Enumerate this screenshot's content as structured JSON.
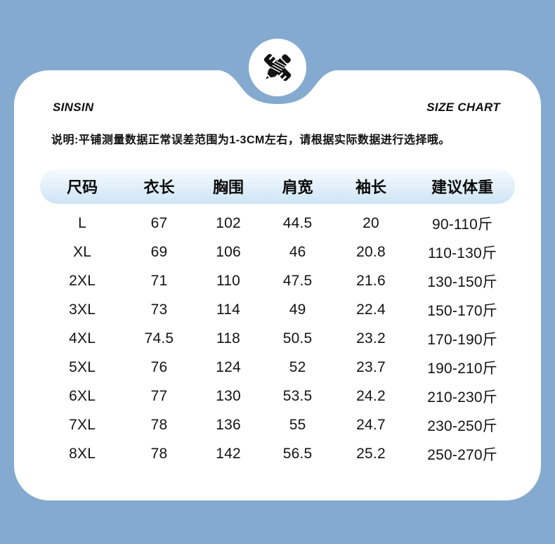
{
  "colors": {
    "background": "#85aacf",
    "card": "#ffffff",
    "header_pill_top": "#f7fbfe",
    "header_pill_bottom": "#cde5f5",
    "text": "#101010",
    "icon": "#111111"
  },
  "header": {
    "brand": "SINSIN",
    "title": "SIZE CHART",
    "badge_icon": "pencil-ruler-icon"
  },
  "note": "说明:平铺测量数据正常误差范围为1-3CM左右，请根据实际数据进行选择哦。",
  "chart_data": {
    "type": "table",
    "title": "SIZE CHART",
    "columns": [
      "尺码",
      "衣长",
      "胸围",
      "肩宽",
      "袖长",
      "建议体重"
    ],
    "rows": [
      [
        "L",
        "67",
        "102",
        "44.5",
        "20",
        "90-110斤"
      ],
      [
        "XL",
        "69",
        "106",
        "46",
        "20.8",
        "110-130斤"
      ],
      [
        "2XL",
        "71",
        "110",
        "47.5",
        "21.6",
        "130-150斤"
      ],
      [
        "3XL",
        "73",
        "114",
        "49",
        "22.4",
        "150-170斤"
      ],
      [
        "4XL",
        "74.5",
        "118",
        "50.5",
        "23.2",
        "170-190斤"
      ],
      [
        "5XL",
        "76",
        "124",
        "52",
        "23.7",
        "190-210斤"
      ],
      [
        "6XL",
        "77",
        "130",
        "53.5",
        "24.2",
        "210-230斤"
      ],
      [
        "7XL",
        "78",
        "136",
        "55",
        "24.7",
        "230-250斤"
      ],
      [
        "8XL",
        "78",
        "142",
        "56.5",
        "25.2",
        "250-270斤"
      ]
    ]
  }
}
